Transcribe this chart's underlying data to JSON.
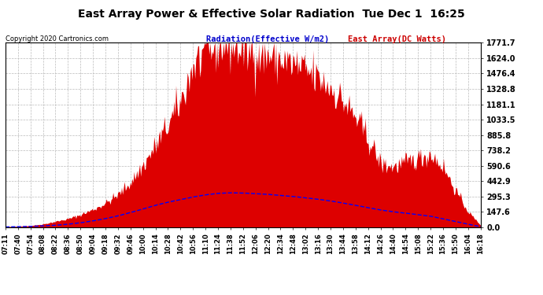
{
  "title": "East Array Power & Effective Solar Radiation  Tue Dec 1  16:25",
  "copyright": "Copyright 2020 Cartronics.com",
  "legend_radiation": "Radiation(Effective W/m2)",
  "legend_east": "East Array(DC Watts)",
  "ymax": 1771.7,
  "yticks": [
    0.0,
    147.6,
    295.3,
    442.9,
    590.6,
    738.2,
    885.8,
    1033.5,
    1181.1,
    1328.8,
    1476.4,
    1624.0,
    1771.7
  ],
  "background_color": "#ffffff",
  "plot_bg_color": "#ffffff",
  "grid_color": "#bbbbbb",
  "bar_color": "#dd0000",
  "line_color": "#0000ff",
  "title_color": "#000000",
  "copyright_color": "#000000",
  "radiation_label_color": "#0000cc",
  "east_label_color": "#cc0000",
  "time_labels": [
    "07:11",
    "07:40",
    "07:54",
    "08:08",
    "08:22",
    "08:36",
    "08:50",
    "09:04",
    "09:18",
    "09:32",
    "09:46",
    "10:00",
    "10:14",
    "10:28",
    "10:42",
    "10:56",
    "11:10",
    "11:24",
    "11:38",
    "11:52",
    "12:06",
    "12:20",
    "12:34",
    "12:48",
    "13:02",
    "13:16",
    "13:30",
    "13:44",
    "13:58",
    "14:12",
    "14:26",
    "14:40",
    "14:54",
    "15:08",
    "15:22",
    "15:36",
    "15:50",
    "16:04",
    "16:18"
  ],
  "east_array_values": [
    5,
    8,
    15,
    30,
    55,
    80,
    120,
    170,
    230,
    310,
    430,
    590,
    780,
    980,
    1200,
    1550,
    1680,
    1760,
    1750,
    1720,
    1690,
    1650,
    1610,
    1560,
    1500,
    1430,
    1340,
    1210,
    1050,
    850,
    610,
    580,
    620,
    660,
    700,
    580,
    350,
    150,
    20
  ],
  "radiation_values": [
    2,
    4,
    7,
    12,
    18,
    28,
    42,
    60,
    82,
    108,
    140,
    175,
    210,
    240,
    265,
    290,
    310,
    325,
    330,
    328,
    322,
    315,
    305,
    295,
    282,
    268,
    252,
    232,
    210,
    188,
    165,
    148,
    135,
    120,
    105,
    80,
    55,
    28,
    5
  ],
  "n_points": 500
}
